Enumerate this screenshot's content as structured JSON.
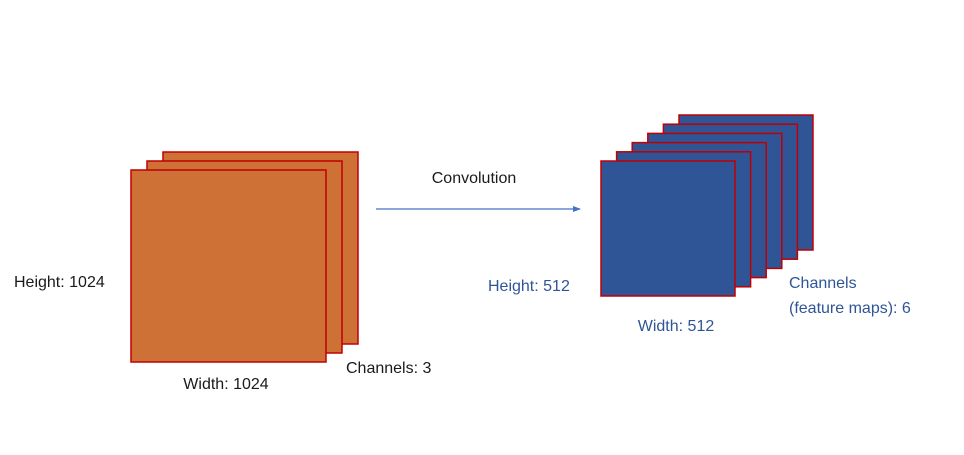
{
  "input": {
    "height_label": "Height: 1024",
    "width_label": "Width: 1024",
    "channels_label": "Channels: 3"
  },
  "operation": {
    "label": "Convolution"
  },
  "output": {
    "height_label": "Height: 512",
    "width_label": "Width: 512",
    "channels_label": [
      "Channels",
      "(feature maps): 6"
    ]
  }
}
